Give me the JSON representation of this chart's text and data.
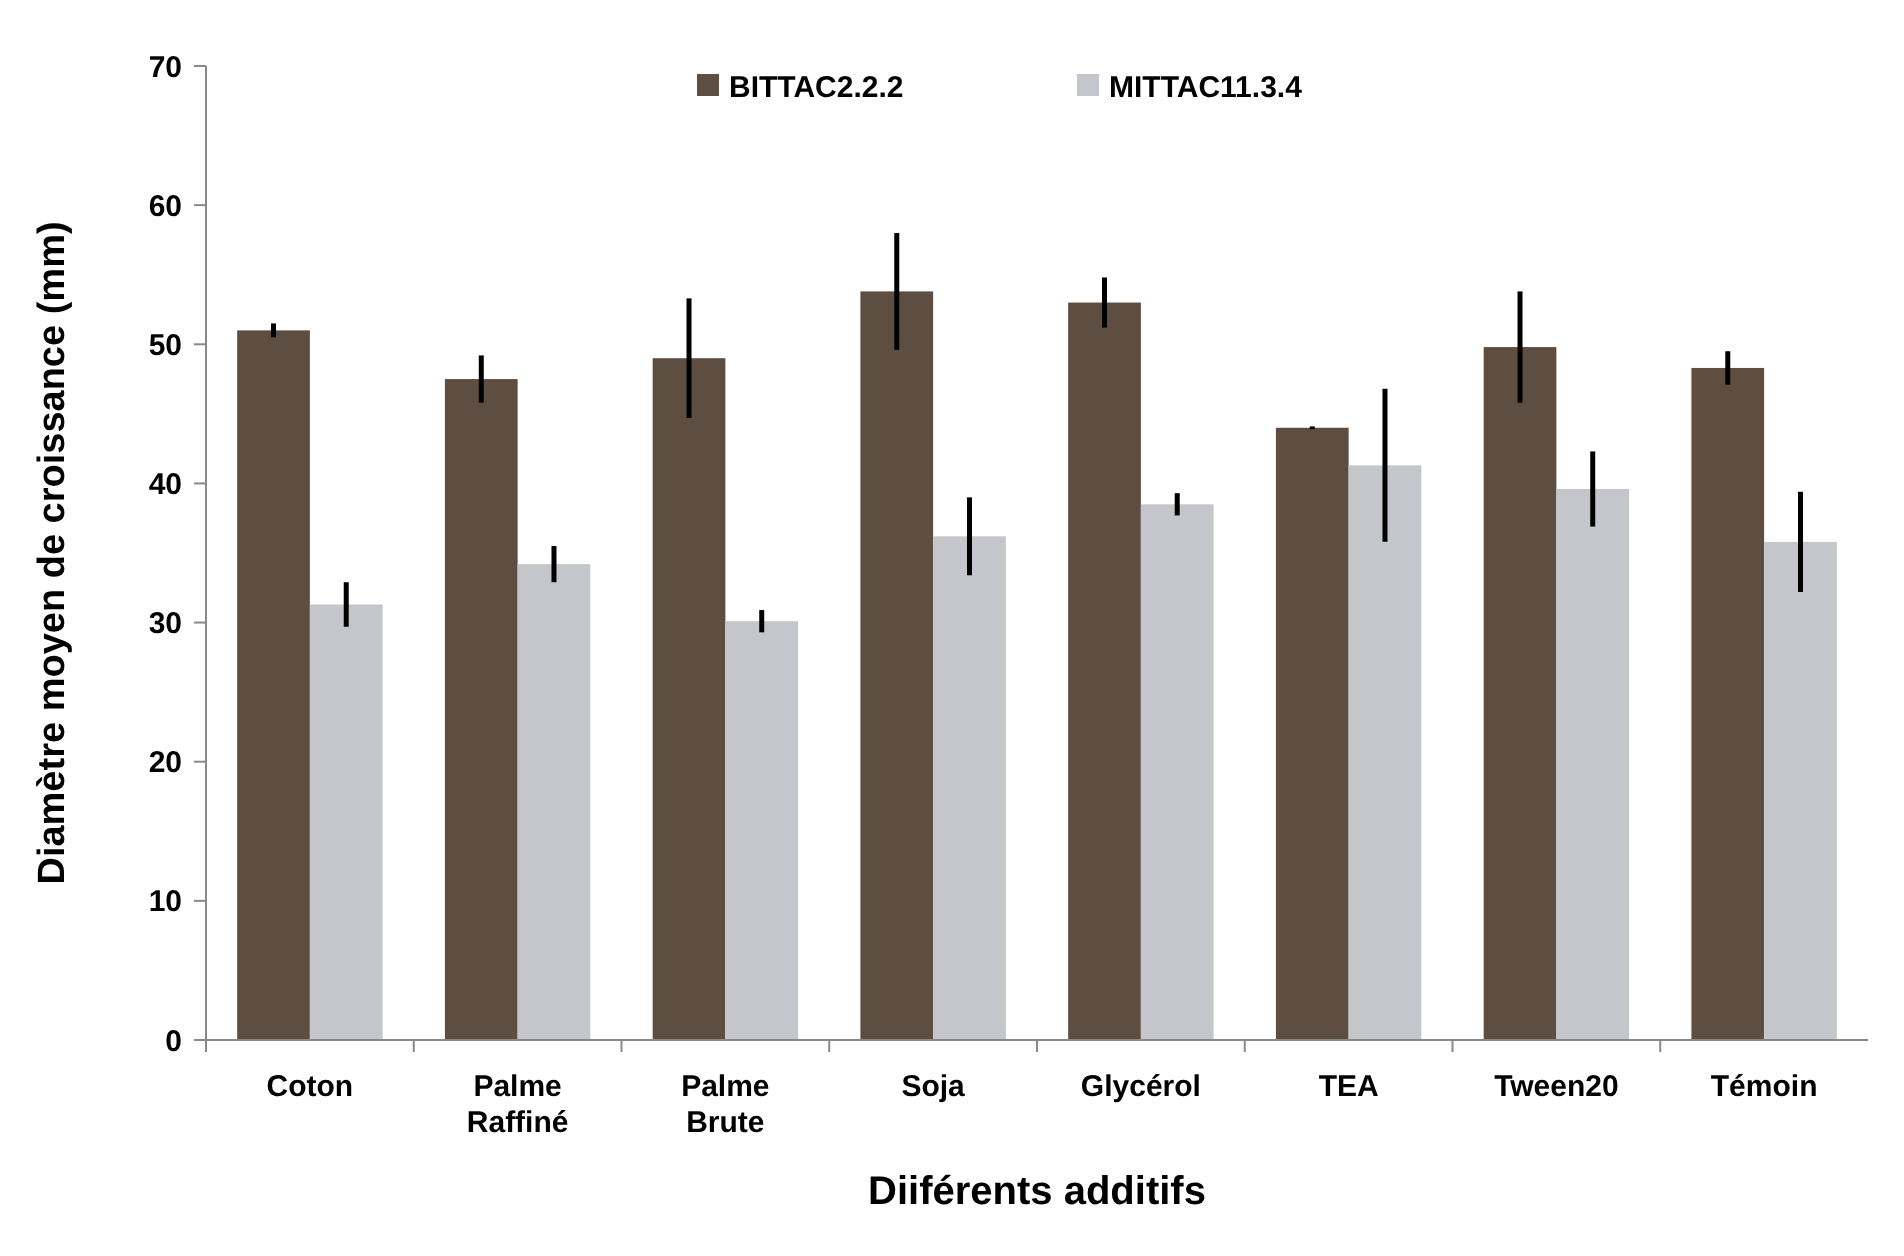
{
  "chart_data": {
    "type": "bar",
    "xlabel": "Diiférents additifs",
    "ylabel": "Diamètre moyen de croissance (mm)",
    "categories": [
      "Coton",
      "Palme Raffiné",
      "Palme Brute",
      "Soja",
      "Glycérol",
      "TEA",
      "Tween20",
      "Témoin"
    ],
    "series": [
      {
        "name": "BITTAC2.2.2",
        "color": "#5e4e42",
        "values": [
          51,
          47.5,
          49,
          53.8,
          53,
          44,
          49.8,
          48.3
        ],
        "errors": [
          0.5,
          1.7,
          4.3,
          4.2,
          1.8,
          0.1,
          4,
          1.2
        ]
      },
      {
        "name": "MITTAC11.3.4",
        "color": "#c4c6cb",
        "values": [
          31.3,
          34.2,
          30.1,
          36.2,
          38.5,
          41.3,
          39.6,
          35.8
        ],
        "errors": [
          1.6,
          1.3,
          0.8,
          2.8,
          0.8,
          5.5,
          2.7,
          3.6
        ]
      }
    ],
    "ylim": [
      0,
      70
    ],
    "yticks": [
      0,
      10,
      20,
      30,
      40,
      50,
      60,
      70
    ],
    "grid": false,
    "legend": "top"
  }
}
